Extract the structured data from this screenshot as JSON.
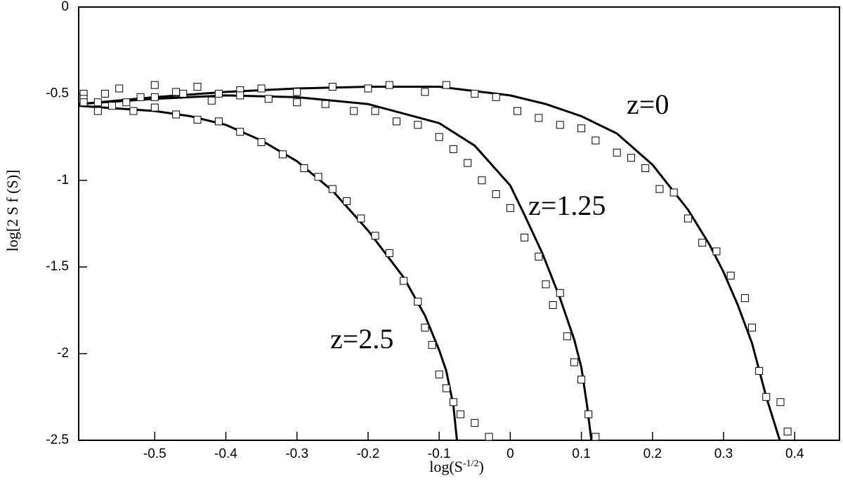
{
  "chart_data": {
    "type": "line",
    "xlabel": {
      "base": "log(S",
      "sup": "-1/2",
      "close": ")"
    },
    "ylabel": "log[2 S f (S)]",
    "xlim": [
      -0.607,
      0.463
    ],
    "ylim": [
      -2.5,
      0
    ],
    "xticks": [
      -0.5,
      -0.4,
      -0.3,
      -0.2,
      -0.1,
      0,
      0.1,
      0.2,
      0.3,
      0.4
    ],
    "yticks": [
      0,
      -0.5,
      -1,
      -1.5,
      -2,
      -2.5
    ],
    "annotations": [
      "z=0",
      "z=1.25",
      "z=2.5"
    ],
    "series": [
      {
        "kind": "line",
        "color": "#000000",
        "x": [
          -0.607,
          -0.5,
          -0.4,
          -0.3,
          -0.2,
          -0.1,
          0,
          0.05,
          0.1,
          0.15,
          0.2,
          0.25,
          0.28,
          0.3,
          0.32,
          0.34,
          0.36,
          0.379
        ],
        "values": [
          -0.56,
          -0.52,
          -0.49,
          -0.47,
          -0.46,
          -0.46,
          -0.51,
          -0.56,
          -0.63,
          -0.73,
          -0.91,
          -1.17,
          -1.37,
          -1.53,
          -1.72,
          -1.94,
          -2.25,
          -2.5
        ]
      },
      {
        "kind": "line",
        "color": "#000000",
        "x": [
          -0.607,
          -0.5,
          -0.4,
          -0.3,
          -0.2,
          -0.1,
          -0.05,
          0,
          0.02,
          0.045,
          0.07,
          0.09,
          0.1,
          0.108,
          0.114
        ],
        "values": [
          -0.56,
          -0.53,
          -0.51,
          -0.52,
          -0.56,
          -0.67,
          -0.8,
          -1.03,
          -1.2,
          -1.42,
          -1.68,
          -1.92,
          -2.08,
          -2.3,
          -2.5
        ]
      },
      {
        "kind": "line",
        "color": "#000000",
        "x": [
          -0.607,
          -0.5,
          -0.45,
          -0.4,
          -0.35,
          -0.3,
          -0.25,
          -0.2,
          -0.15,
          -0.12,
          -0.1,
          -0.09,
          -0.08,
          -0.075
        ],
        "values": [
          -0.57,
          -0.6,
          -0.63,
          -0.68,
          -0.77,
          -0.89,
          -1.06,
          -1.29,
          -1.56,
          -1.78,
          -1.98,
          -2.1,
          -2.3,
          -2.5
        ]
      },
      {
        "kind": "scatter",
        "color": "#000000",
        "x": [
          -0.6,
          -0.58,
          -0.55,
          -0.52,
          -0.5,
          -0.47,
          -0.44,
          -0.41,
          -0.38,
          -0.35,
          -0.3,
          -0.25,
          -0.2,
          -0.17,
          -0.12,
          -0.09,
          -0.05,
          -0.02,
          0.01,
          0.04,
          0.07,
          0.1,
          0.12,
          0.15,
          0.17,
          0.19,
          0.21,
          0.23,
          0.25,
          0.27,
          0.29,
          0.31,
          0.33,
          0.34,
          0.35,
          0.36,
          0.38,
          0.39
        ],
        "values": [
          -0.5,
          -0.55,
          -0.47,
          -0.52,
          -0.45,
          -0.49,
          -0.46,
          -0.5,
          -0.48,
          -0.47,
          -0.49,
          -0.46,
          -0.47,
          -0.45,
          -0.49,
          -0.45,
          -0.5,
          -0.52,
          -0.6,
          -0.64,
          -0.68,
          -0.7,
          -0.77,
          -0.84,
          -0.87,
          -0.93,
          -1.05,
          -1.07,
          -1.22,
          -1.36,
          -1.41,
          -1.55,
          -1.68,
          -1.85,
          -2.1,
          -2.25,
          -2.28,
          -2.45
        ]
      },
      {
        "kind": "scatter",
        "color": "#000000",
        "x": [
          -0.6,
          -0.57,
          -0.54,
          -0.5,
          -0.46,
          -0.42,
          -0.38,
          -0.34,
          -0.3,
          -0.26,
          -0.22,
          -0.19,
          -0.16,
          -0.13,
          -0.1,
          -0.08,
          -0.06,
          -0.04,
          -0.02,
          0,
          0.02,
          0.04,
          0.05,
          0.06,
          0.07,
          0.08,
          0.09,
          0.1,
          0.11,
          0.12
        ],
        "values": [
          -0.53,
          -0.5,
          -0.55,
          -0.52,
          -0.5,
          -0.54,
          -0.51,
          -0.53,
          -0.55,
          -0.56,
          -0.6,
          -0.6,
          -0.66,
          -0.68,
          -0.75,
          -0.82,
          -0.9,
          -1.0,
          -1.08,
          -1.16,
          -1.33,
          -1.44,
          -1.6,
          -1.72,
          -1.65,
          -1.9,
          -2.05,
          -2.15,
          -2.35,
          -2.48
        ]
      },
      {
        "kind": "scatter",
        "color": "#000000",
        "x": [
          -0.6,
          -0.58,
          -0.56,
          -0.53,
          -0.5,
          -0.47,
          -0.44,
          -0.41,
          -0.38,
          -0.35,
          -0.32,
          -0.29,
          -0.27,
          -0.25,
          -0.23,
          -0.21,
          -0.19,
          -0.17,
          -0.15,
          -0.13,
          -0.12,
          -0.11,
          -0.1,
          -0.09,
          -0.08,
          -0.07,
          -0.05,
          -0.03
        ],
        "values": [
          -0.55,
          -0.6,
          -0.57,
          -0.6,
          -0.58,
          -0.62,
          -0.65,
          -0.66,
          -0.72,
          -0.78,
          -0.85,
          -0.93,
          -0.98,
          -1.05,
          -1.12,
          -1.22,
          -1.32,
          -1.42,
          -1.58,
          -1.7,
          -1.85,
          -1.95,
          -2.12,
          -2.2,
          -2.28,
          -2.35,
          -2.4,
          -2.48
        ]
      }
    ]
  }
}
